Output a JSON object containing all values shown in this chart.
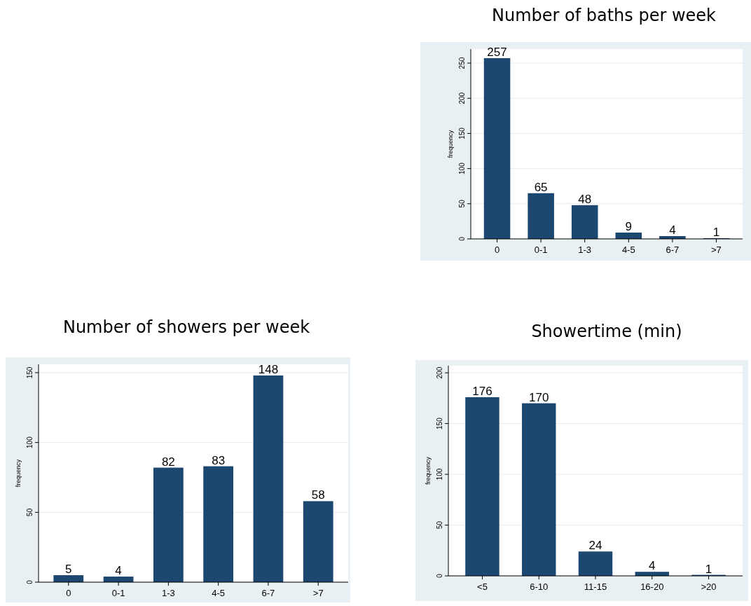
{
  "chart_data": [
    {
      "type": "bar",
      "title": "Number of baths per week",
      "ylabel": "frequency",
      "categories": [
        "0",
        "0-1",
        "1-3",
        "4-5",
        "6-7",
        ">7"
      ],
      "values": [
        257,
        65,
        48,
        9,
        4,
        1
      ],
      "color": "#1b4770",
      "ylim": [
        0,
        270
      ],
      "yticks": [
        0,
        50,
        100,
        150,
        200,
        250
      ],
      "grid": "y",
      "data_labels": true
    },
    {
      "type": "bar",
      "title": "Number of showers per week",
      "ylabel": "frequency",
      "categories": [
        "0",
        "0-1",
        "1-3",
        "4-5",
        "6-7",
        ">7"
      ],
      "values": [
        5,
        4,
        82,
        83,
        148,
        58
      ],
      "color": "#1b4770",
      "ylim": [
        0,
        156
      ],
      "yticks": [
        0,
        50,
        100,
        150
      ],
      "grid": "y",
      "data_labels": true
    },
    {
      "type": "bar",
      "title": "Showertime (min)",
      "ylabel": "frequency",
      "categories": [
        "<5",
        "6-10",
        "11-15",
        "16-20",
        ">20"
      ],
      "values": [
        176,
        170,
        24,
        4,
        1
      ],
      "color": "#1b4770",
      "ylim": [
        0,
        207
      ],
      "yticks": [
        0,
        50,
        100,
        150,
        200
      ],
      "grid": "y",
      "data_labels": true
    }
  ]
}
